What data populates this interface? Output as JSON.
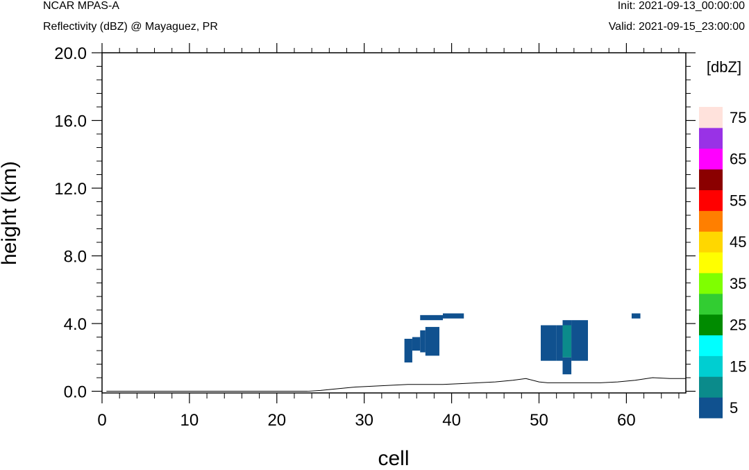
{
  "header": {
    "title": "NCAR MPAS-A",
    "subtitle": "Reflectivity (dBZ) @ Mayaguez, PR",
    "init": "Init: 2021-09-13_00:00:00",
    "valid": "Valid: 2021-09-15_23:00:00"
  },
  "chart_data": {
    "type": "heatmap",
    "xlabel": "cell",
    "ylabel": "height (km)",
    "xlim": [
      0,
      66.8
    ],
    "ylim": [
      -0.1,
      20.0
    ],
    "xticks": [
      0,
      10,
      20,
      30,
      40,
      50,
      60
    ],
    "xtick_labels": [
      "0",
      "10",
      "20",
      "30",
      "40",
      "50",
      "60"
    ],
    "yticks": [
      0,
      4,
      8,
      12,
      16,
      20
    ],
    "ytick_labels": [
      "0.0",
      "4.0",
      "8.0",
      "12.0",
      "16.0",
      "20.0"
    ],
    "grid": false,
    "colorbar": {
      "unit_label": "[dbZ]",
      "levels": [
        5,
        10,
        15,
        20,
        25,
        30,
        35,
        40,
        45,
        50,
        55,
        60,
        65,
        70,
        75
      ],
      "colors": [
        "#10518f",
        "#0b8b8b",
        "#00ced1",
        "#00ffff",
        "#008b00",
        "#32cd32",
        "#7fff00",
        "#ffff00",
        "#ffd700",
        "#ff7f00",
        "#ff0000",
        "#8b0000",
        "#ff00ff",
        "#9932e6",
        "#ffe2dc"
      ],
      "tick_labels": [
        "5",
        "15",
        "25",
        "35",
        "45",
        "55",
        "65",
        "75"
      ]
    },
    "cells": [
      {
        "x0": 34.6,
        "x1": 35.5,
        "y0": 1.7,
        "y1": 3.1,
        "dbz": 5
      },
      {
        "x0": 35.5,
        "x1": 36.4,
        "y0": 2.4,
        "y1": 3.2,
        "dbz": 5
      },
      {
        "x0": 36.4,
        "x1": 37.0,
        "y0": 2.3,
        "y1": 3.6,
        "dbz": 5
      },
      {
        "x0": 37.0,
        "x1": 38.6,
        "y0": 2.1,
        "y1": 3.8,
        "dbz": 5
      },
      {
        "x0": 36.4,
        "x1": 39.0,
        "y0": 4.2,
        "y1": 4.5,
        "dbz": 5
      },
      {
        "x0": 39.0,
        "x1": 41.4,
        "y0": 4.3,
        "y1": 4.6,
        "dbz": 5
      },
      {
        "x0": 50.2,
        "x1": 52.0,
        "y0": 1.8,
        "y1": 3.9,
        "dbz": 5
      },
      {
        "x0": 52.0,
        "x1": 52.7,
        "y0": 1.8,
        "y1": 3.9,
        "dbz": 5
      },
      {
        "x0": 52.7,
        "x1": 53.7,
        "y0": 2.0,
        "y1": 3.9,
        "dbz": 10
      },
      {
        "x0": 52.7,
        "x1": 53.7,
        "y0": 1.0,
        "y1": 2.0,
        "dbz": 5
      },
      {
        "x0": 52.7,
        "x1": 53.7,
        "y0": 3.9,
        "y1": 4.2,
        "dbz": 5
      },
      {
        "x0": 53.7,
        "x1": 55.6,
        "y0": 1.8,
        "y1": 4.2,
        "dbz": 5
      },
      {
        "x0": 60.6,
        "x1": 61.6,
        "y0": 4.3,
        "y1": 4.6,
        "dbz": 5
      }
    ],
    "terrain": {
      "x": [
        0.5,
        23.5,
        25,
        27,
        29,
        31,
        33,
        35,
        37,
        39,
        41,
        43,
        45,
        47,
        48.5,
        50,
        51,
        53,
        55,
        57,
        59,
        61,
        63,
        65,
        66.8
      ],
      "y": [
        0.0,
        0.0,
        0.05,
        0.15,
        0.25,
        0.3,
        0.35,
        0.4,
        0.4,
        0.4,
        0.45,
        0.5,
        0.55,
        0.65,
        0.75,
        0.55,
        0.5,
        0.5,
        0.5,
        0.5,
        0.55,
        0.65,
        0.8,
        0.75,
        0.75
      ]
    }
  }
}
